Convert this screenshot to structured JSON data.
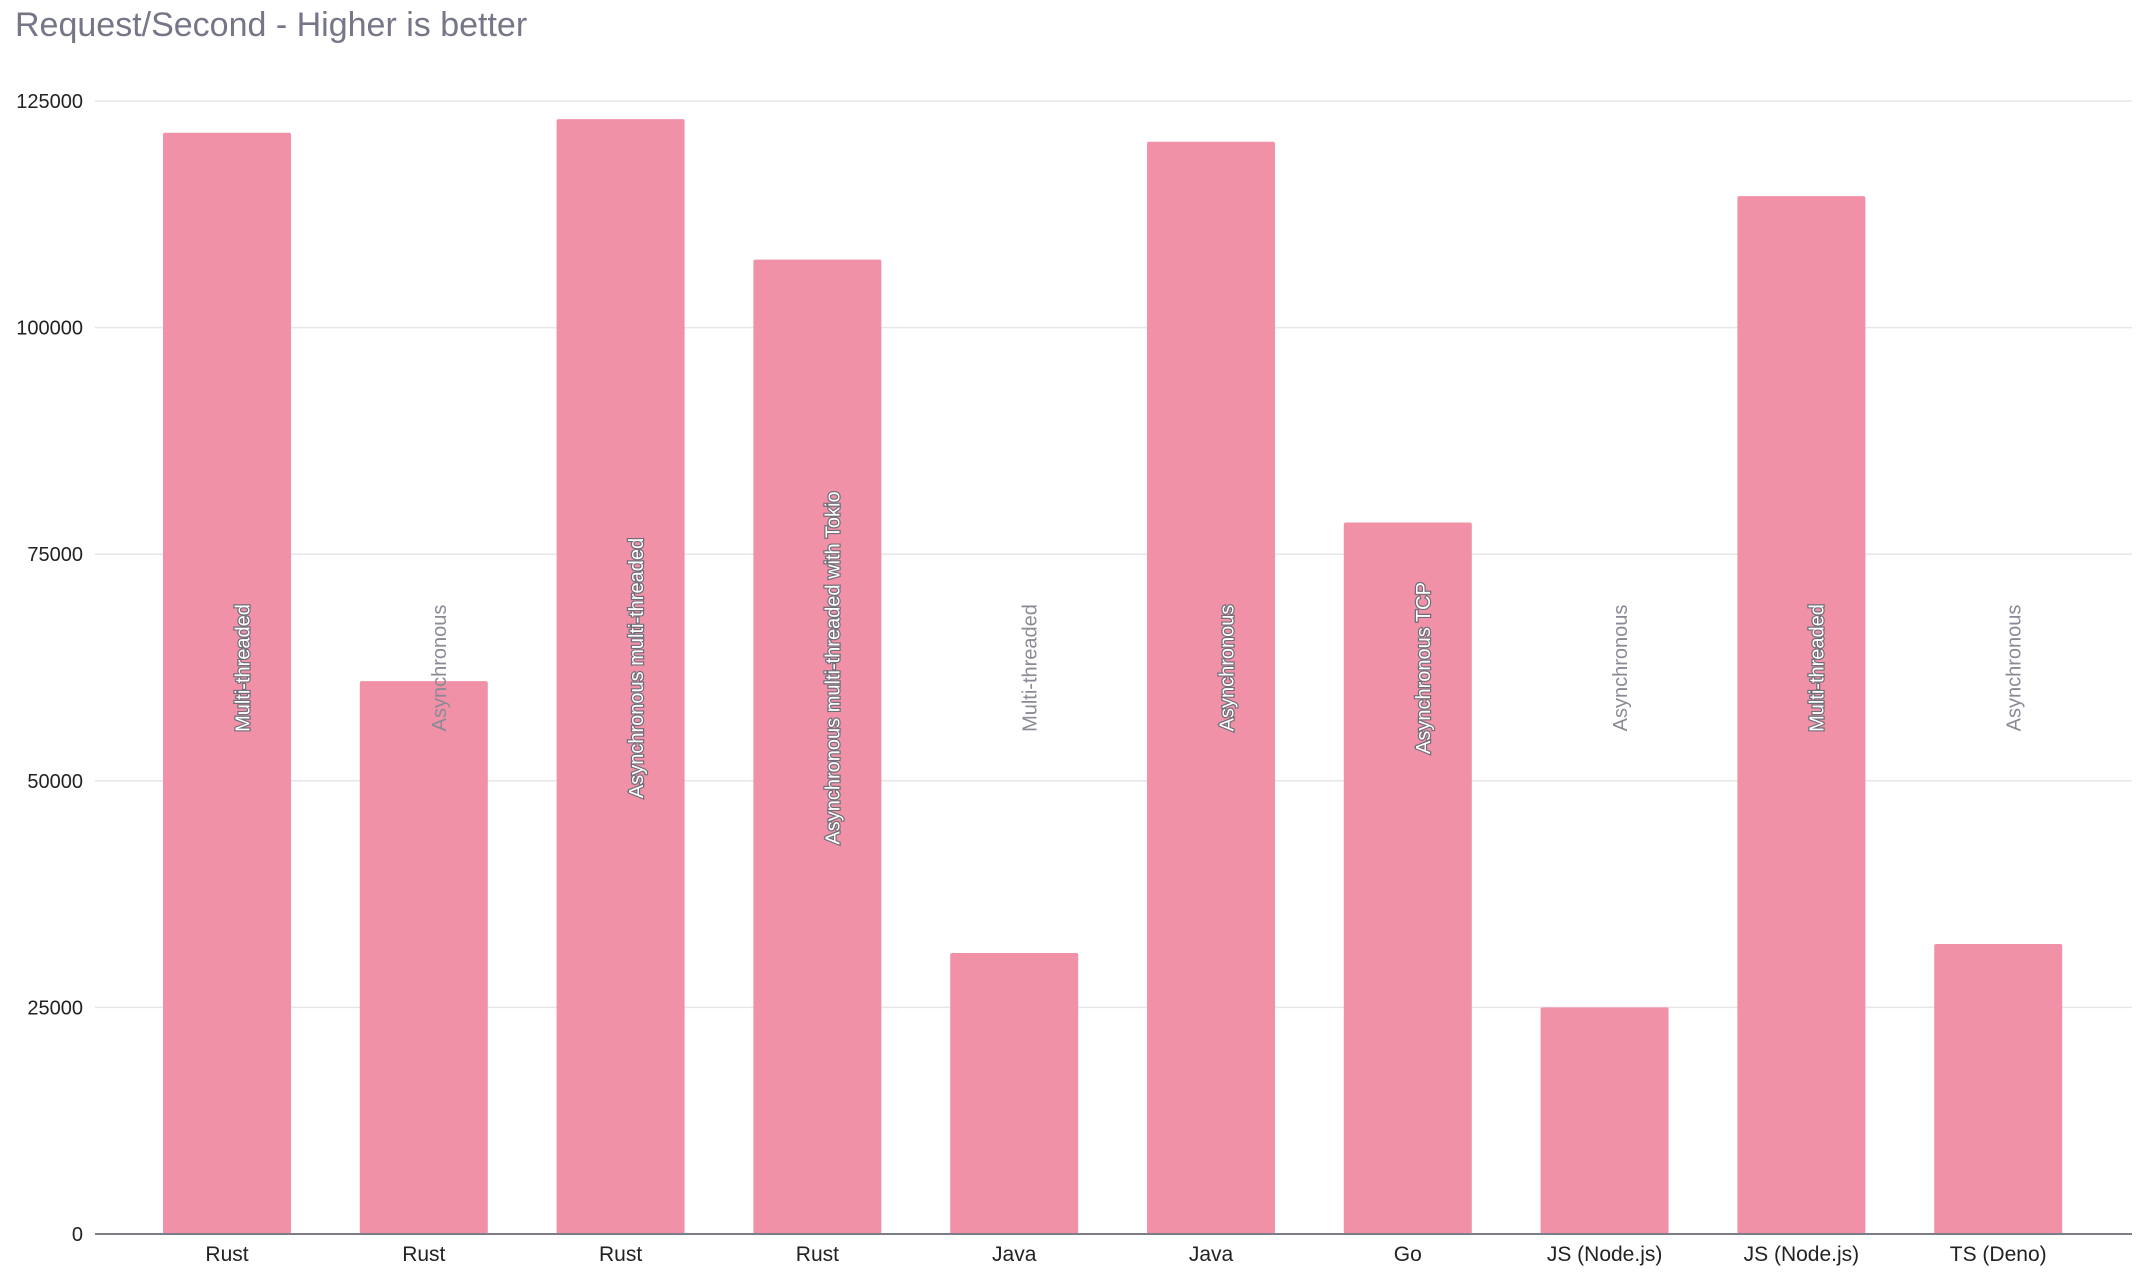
{
  "chart_data": {
    "type": "bar",
    "title": "Request/Second - Higher is better",
    "xlabel": "",
    "ylabel": "",
    "ylim": [
      0,
      125000
    ],
    "yticks": [
      0,
      25000,
      50000,
      75000,
      100000,
      125000
    ],
    "grid": true,
    "legend": "none",
    "categories": [
      "Rust",
      "Rust",
      "Rust",
      "Rust",
      "Java",
      "Java",
      "Go",
      "JS (Node.js)",
      "JS (Node.js)",
      "TS (Deno)"
    ],
    "bar_labels": [
      "Multi-threaded",
      "Asynchronous",
      "Asynchronous multi-threaded",
      "Asynchronous multi-threaded with Tokio",
      "Multi-threaded",
      "Asynchronous",
      "Asynchronous TCP",
      "Asynchronous",
      "Multi-threaded",
      "Asynchronous"
    ],
    "values": [
      121500,
      61000,
      123000,
      107500,
      31000,
      120500,
      78500,
      25000,
      114500,
      32000
    ],
    "colors": {
      "bar": "#f091a8",
      "grid": "#e6e6ea",
      "axis": "#7d7d8a",
      "title": "#757687",
      "label_inside": "#ffffff",
      "label_outside": "#8a8a96"
    }
  }
}
